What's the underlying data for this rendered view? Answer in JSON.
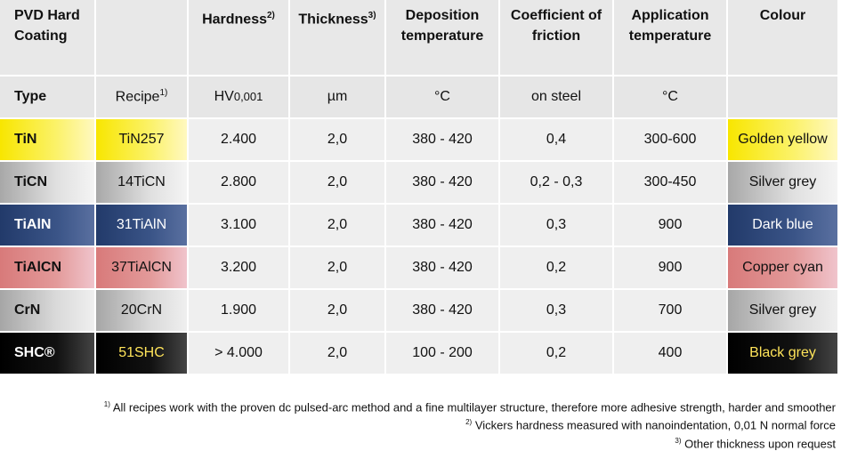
{
  "header": {
    "coating": {
      "label": "PVD Hard Coating"
    },
    "hardness": {
      "label": "Hardness",
      "note": "2)"
    },
    "thickness": {
      "label": "Thickness",
      "note": "3)"
    },
    "deposition": {
      "label": "Deposition temperature"
    },
    "friction": {
      "label": "Coefficient of friction"
    },
    "application": {
      "label": "Application temperature"
    },
    "colour": {
      "label": "Colour"
    }
  },
  "subheader": {
    "type": "Type",
    "recipe": "Recipe",
    "recipe_note": "1)",
    "hardness_unit": "HV",
    "hardness_sub": "0,001",
    "thickness_unit": "µm",
    "deposition_unit": "°C",
    "friction_unit": "on steel",
    "application_unit": "°C"
  },
  "table": {
    "rows": [
      [
        "TiN",
        "TiN257",
        "2.400",
        "2,0",
        "380 - 420",
        "0,4",
        "300-600",
        "Golden yellow"
      ],
      [
        "TiCN",
        "14TiCN",
        "2.800",
        "2,0",
        "380 - 420",
        "0,2 - 0,3",
        "300-450",
        "Silver grey"
      ],
      [
        "TiAlN",
        "31TiAlN",
        "3.100",
        "2,0",
        "380 - 420",
        "0,3",
        "900",
        "Dark blue"
      ],
      [
        "TiAlCN",
        "37TiAlCN",
        "3.200",
        "2,0",
        "380 - 420",
        "0,2",
        "900",
        "Copper cyan"
      ],
      [
        "CrN",
        "20CrN",
        "1.900",
        "2,0",
        "380 - 420",
        "0,3",
        "700",
        "Silver grey"
      ],
      [
        "SHC®",
        "51SHC",
        "> 4.000",
        "2,0",
        "100 - 200",
        "0,2",
        "400",
        "Black grey"
      ]
    ]
  },
  "footnotes": [
    {
      "mark": "1)",
      "text": "All recipes work with the proven dc pulsed-arc method and a fine multilayer structure, therefore more adhesive strength, harder and smoother"
    },
    {
      "mark": "2)",
      "text": "Vickers hardness measured with nanoindentation, 0,01 N normal force"
    },
    {
      "mark": "3)",
      "text": "Other thickness upon request"
    }
  ]
}
